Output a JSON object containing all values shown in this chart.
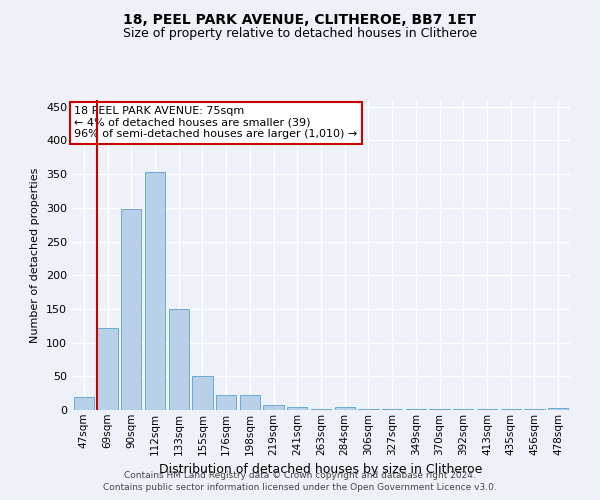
{
  "title1": "18, PEEL PARK AVENUE, CLITHEROE, BB7 1ET",
  "title2": "Size of property relative to detached houses in Clitheroe",
  "xlabel": "Distribution of detached houses by size in Clitheroe",
  "ylabel": "Number of detached properties",
  "categories": [
    "47sqm",
    "69sqm",
    "90sqm",
    "112sqm",
    "133sqm",
    "155sqm",
    "176sqm",
    "198sqm",
    "219sqm",
    "241sqm",
    "263sqm",
    "284sqm",
    "306sqm",
    "327sqm",
    "349sqm",
    "370sqm",
    "392sqm",
    "413sqm",
    "435sqm",
    "456sqm",
    "478sqm"
  ],
  "values": [
    20,
    122,
    298,
    353,
    150,
    50,
    22,
    22,
    8,
    5,
    2,
    5,
    2,
    2,
    1,
    1,
    2,
    1,
    1,
    1,
    3
  ],
  "bar_color": "#b8d0e8",
  "bar_edge_color": "#6aaad4",
  "red_line_bar_index": 1,
  "annotation_title": "18 PEEL PARK AVENUE: 75sqm",
  "annotation_line1": "← 4% of detached houses are smaller (39)",
  "annotation_line2": "96% of semi-detached houses are larger (1,010) →",
  "annotation_box_color": "#ffffff",
  "annotation_box_edge": "#cc0000",
  "ylim": [
    0,
    460
  ],
  "yticks": [
    0,
    50,
    100,
    150,
    200,
    250,
    300,
    350,
    400,
    450
  ],
  "footer1": "Contains HM Land Registry data © Crown copyright and database right 2024.",
  "footer2": "Contains public sector information licensed under the Open Government Licence v3.0.",
  "bg_color": "#eef2f8",
  "plot_bg_color": "#eef2f8",
  "grid_color": "#ffffff",
  "title1_fontsize": 10,
  "title2_fontsize": 9,
  "ylabel_fontsize": 8,
  "xlabel_fontsize": 9,
  "tick_fontsize": 8,
  "xtick_fontsize": 7.5,
  "footer_fontsize": 6.5,
  "annotation_fontsize": 8
}
